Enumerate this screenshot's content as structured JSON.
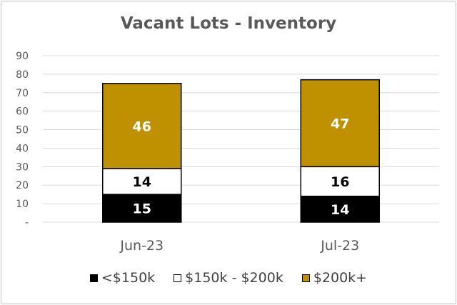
{
  "chart_data": {
    "type": "bar",
    "stacked": true,
    "title": "Vacant Lots - Inventory",
    "categories": [
      "Jun-23",
      "Jul-23"
    ],
    "series": [
      {
        "name": "<$150k",
        "values": [
          15,
          14
        ],
        "color": "#000000",
        "label_color": "#ffffff"
      },
      {
        "name": "$150k - $200k",
        "values": [
          14,
          16
        ],
        "color": "#ffffff",
        "label_color": "#000000"
      },
      {
        "name": "$200k+",
        "values": [
          46,
          47
        ],
        "color": "#bf9000",
        "label_color": "#ffffff"
      }
    ],
    "yticks": [
      "-",
      "10",
      "20",
      "30",
      "40",
      "50",
      "60",
      "70",
      "80",
      "90"
    ],
    "ylim": [
      0,
      90
    ],
    "grid": true,
    "legend": "bottom"
  }
}
